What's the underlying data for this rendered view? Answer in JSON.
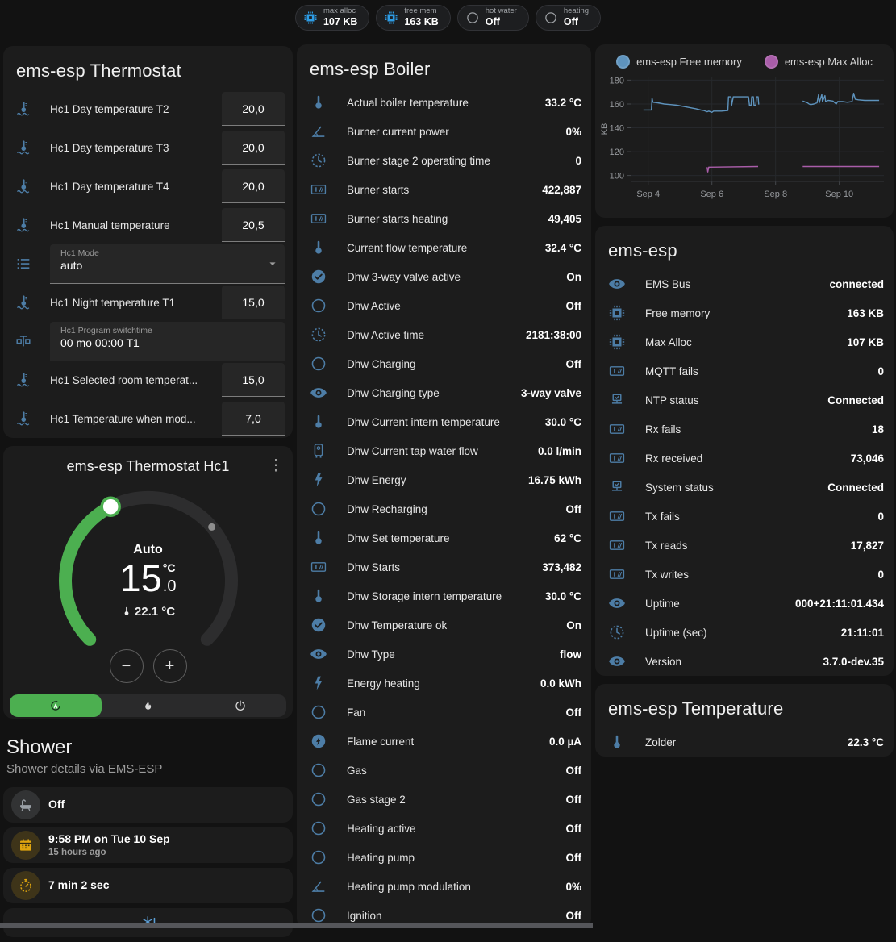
{
  "chips": [
    {
      "label": "max alloc",
      "value": "107 KB",
      "icon": "chip",
      "icon_color": "#2d9ce5"
    },
    {
      "label": "free mem",
      "value": "163 KB",
      "icon": "chip",
      "icon_color": "#2d9ce5"
    },
    {
      "label": "hot water",
      "value": "Off",
      "icon": "circle",
      "icon_color": "#9da0a4"
    },
    {
      "label": "heating",
      "value": "Off",
      "icon": "circle",
      "icon_color": "#9da0a4"
    }
  ],
  "thermostat_card": {
    "title": "ems-esp Thermostat",
    "rows": [
      {
        "type": "number",
        "icon": "thermo-water",
        "label": "Hc1 Day temperature T2",
        "value": "20,0"
      },
      {
        "type": "number",
        "icon": "thermo-water",
        "label": "Hc1 Day temperature T3",
        "value": "20,0"
      },
      {
        "type": "number",
        "icon": "thermo-water",
        "label": "Hc1 Day temperature T4",
        "value": "20,0"
      },
      {
        "type": "number",
        "icon": "thermo-water",
        "label": "Hc1 Manual temperature",
        "value": "20,5"
      },
      {
        "type": "select",
        "icon": "list",
        "label": "Hc1 Mode",
        "value": "auto"
      },
      {
        "type": "number",
        "icon": "thermo-water",
        "label": "Hc1 Night temperature T1",
        "value": "15,0"
      },
      {
        "type": "text",
        "icon": "valve",
        "label": "Hc1 Program switchtime",
        "value": "00 mo 00:00 T1"
      },
      {
        "type": "number",
        "icon": "thermo-water",
        "label": "Hc1 Selected room temperat...",
        "value": "15,0"
      },
      {
        "type": "number",
        "icon": "thermo-water",
        "label": "Hc1 Temperature when mod...",
        "value": "7,0"
      }
    ]
  },
  "hc1_card": {
    "title": "ems-esp Thermostat Hc1",
    "mode_label": "Auto",
    "target_whole": "15",
    "target_unit": "°C",
    "target_decimal": ".0",
    "current_temp": "22.1 °C",
    "accent_color": "#4caf50",
    "modes": [
      {
        "icon": "automode",
        "active": true
      },
      {
        "icon": "flame",
        "active": false
      },
      {
        "icon": "power",
        "active": false
      }
    ]
  },
  "shower": {
    "heading": "Shower",
    "subheading": "Shower details via EMS-ESP",
    "tiles": [
      {
        "icon": "bath",
        "icon_color": "#9aa0a6",
        "primary": "Off",
        "secondary": ""
      },
      {
        "icon": "calendar",
        "icon_color": "#dfa50f",
        "primary": "9:58 PM on Tue 10 Sep",
        "secondary": "15 hours ago"
      },
      {
        "icon": "timer",
        "icon_color": "#dfa50f",
        "primary": "7 min 2 sec",
        "secondary": ""
      },
      {
        "icon": "snowflake",
        "icon_color": "#5c9fd6",
        "primary": "",
        "secondary": ""
      }
    ]
  },
  "boiler_card": {
    "title": "ems-esp Boiler",
    "rows": [
      {
        "icon": "thermometer",
        "label": "Actual boiler temperature",
        "value": "33.2 °C"
      },
      {
        "icon": "angle",
        "label": "Burner current power",
        "value": "0%"
      },
      {
        "icon": "clockd",
        "label": "Burner stage 2 operating time",
        "value": "0"
      },
      {
        "icon": "counter",
        "label": "Burner starts",
        "value": "422,887"
      },
      {
        "icon": "counter",
        "label": "Burner starts heating",
        "value": "49,405"
      },
      {
        "icon": "thermometer",
        "label": "Current flow temperature",
        "value": "32.4 °C"
      },
      {
        "icon": "check-circle",
        "label": "Dhw 3-way valve active",
        "value": "On"
      },
      {
        "icon": "circle",
        "label": "Dhw Active",
        "value": "Off"
      },
      {
        "icon": "clockd",
        "label": "Dhw Active time",
        "value": "2181:38:00"
      },
      {
        "icon": "circle",
        "label": "Dhw Charging",
        "value": "Off"
      },
      {
        "icon": "eye",
        "label": "Dhw Charging type",
        "value": "3-way valve"
      },
      {
        "icon": "thermometer",
        "label": "Dhw Current intern temperature",
        "value": "30.0 °C"
      },
      {
        "icon": "boiler",
        "label": "Dhw Current tap water flow",
        "value": "0.0 l/min"
      },
      {
        "icon": "flash",
        "label": "Dhw Energy",
        "value": "16.75 kWh"
      },
      {
        "icon": "circle",
        "label": "Dhw Recharging",
        "value": "Off"
      },
      {
        "icon": "thermometer",
        "label": "Dhw Set temperature",
        "value": "62 °C"
      },
      {
        "icon": "counter",
        "label": "Dhw Starts",
        "value": "373,482"
      },
      {
        "icon": "thermometer",
        "label": "Dhw Storage intern temperature",
        "value": "30.0 °C"
      },
      {
        "icon": "check-circle",
        "label": "Dhw Temperature ok",
        "value": "On"
      },
      {
        "icon": "eye",
        "label": "Dhw Type",
        "value": "flow"
      },
      {
        "icon": "flash",
        "label": "Energy heating",
        "value": "0.0 kWh"
      },
      {
        "icon": "circle",
        "label": "Fan",
        "value": "Off"
      },
      {
        "icon": "flash-circle",
        "label": "Flame current",
        "value": "0.0 µA"
      },
      {
        "icon": "circle",
        "label": "Gas",
        "value": "Off"
      },
      {
        "icon": "circle",
        "label": "Gas stage 2",
        "value": "Off"
      },
      {
        "icon": "circle",
        "label": "Heating active",
        "value": "Off"
      },
      {
        "icon": "circle",
        "label": "Heating pump",
        "value": "Off"
      },
      {
        "icon": "angle",
        "label": "Heating pump modulation",
        "value": "0%"
      },
      {
        "icon": "circle",
        "label": "Ignition",
        "value": "Off"
      }
    ]
  },
  "system_card": {
    "title": "ems-esp",
    "rows": [
      {
        "icon": "eye",
        "label": "EMS Bus",
        "value": "connected"
      },
      {
        "icon": "chip",
        "label": "Free memory",
        "value": "163 KB"
      },
      {
        "icon": "chip",
        "label": "Max Alloc",
        "value": "107 KB"
      },
      {
        "icon": "counter",
        "label": "MQTT fails",
        "value": "0"
      },
      {
        "icon": "network",
        "label": "NTP status",
        "value": "Connected"
      },
      {
        "icon": "counter",
        "label": "Rx fails",
        "value": "18"
      },
      {
        "icon": "counter",
        "label": "Rx received",
        "value": "73,046"
      },
      {
        "icon": "network",
        "label": "System status",
        "value": "Connected"
      },
      {
        "icon": "counter",
        "label": "Tx fails",
        "value": "0"
      },
      {
        "icon": "counter",
        "label": "Tx reads",
        "value": "17,827"
      },
      {
        "icon": "counter",
        "label": "Tx writes",
        "value": "0"
      },
      {
        "icon": "eye",
        "label": "Uptime",
        "value": "000+21:11:01.434"
      },
      {
        "icon": "clockd",
        "label": "Uptime (sec)",
        "value": "21:11:01"
      },
      {
        "icon": "eye",
        "label": "Version",
        "value": "3.7.0-dev.35"
      }
    ]
  },
  "temperature_card": {
    "title": "ems-esp Temperature",
    "rows": [
      {
        "icon": "thermometer",
        "label": "Zolder",
        "value": "22.3 °C"
      }
    ]
  },
  "chart_data": {
    "type": "line",
    "ylabel": "KB",
    "ylim": [
      95,
      183
    ],
    "yticks": [
      100,
      120,
      140,
      160,
      180
    ],
    "xlim": [
      3.45,
      11.4
    ],
    "xticks": [
      {
        "x": 4,
        "label": "Sep 4"
      },
      {
        "x": 6,
        "label": "Sep 6"
      },
      {
        "x": 8,
        "label": "Sep 8"
      },
      {
        "x": 10,
        "label": "Sep 10"
      }
    ],
    "legend_position": "top",
    "grid": true,
    "series": [
      {
        "name": "ems-esp Free memory",
        "color": "#5e93bd",
        "segments": [
          [
            [
              3.85,
              155
            ],
            [
              4.1,
              155
            ],
            [
              4.12,
              165
            ],
            [
              4.15,
              161.5
            ],
            [
              4.3,
              161
            ],
            [
              4.5,
              160
            ],
            [
              4.7,
              159.5
            ],
            [
              4.9,
              159
            ],
            [
              5.1,
              158
            ],
            [
              5.3,
              157
            ],
            [
              5.5,
              156
            ],
            [
              5.65,
              155
            ],
            [
              5.75,
              154.5
            ],
            [
              5.85,
              153.5
            ],
            [
              5.9,
              154
            ],
            [
              6.0,
              153
            ],
            [
              6.05,
              154
            ],
            [
              6.3,
              154
            ],
            [
              6.5,
              154.5
            ],
            [
              6.52,
              166
            ],
            [
              6.6,
              166
            ],
            [
              6.62,
              159
            ],
            [
              6.67,
              166
            ],
            [
              7.15,
              166
            ],
            [
              7.18,
              159
            ],
            [
              7.23,
              159
            ],
            [
              7.25,
              166
            ],
            [
              7.3,
              166
            ],
            [
              7.32,
              159
            ],
            [
              7.38,
              159
            ],
            [
              7.4,
              166
            ],
            [
              7.45,
              166
            ],
            [
              7.47,
              159.5
            ]
          ],
          [
            [
              8.85,
              162.5
            ],
            [
              9.0,
              161
            ],
            [
              9.05,
              160
            ],
            [
              9.1,
              159.5
            ],
            [
              9.2,
              160
            ],
            [
              9.3,
              161
            ],
            [
              9.35,
              168
            ],
            [
              9.37,
              161
            ],
            [
              9.45,
              168
            ],
            [
              9.47,
              162
            ],
            [
              9.55,
              167
            ],
            [
              9.57,
              162
            ],
            [
              9.65,
              163
            ],
            [
              9.8,
              162.5
            ],
            [
              9.9,
              160
            ],
            [
              9.95,
              162
            ],
            [
              10.1,
              162
            ],
            [
              10.25,
              161.5
            ],
            [
              10.4,
              162
            ],
            [
              10.45,
              169
            ],
            [
              10.5,
              164
            ],
            [
              10.6,
              163.5
            ],
            [
              10.8,
              163
            ],
            [
              11.0,
              163
            ],
            [
              11.25,
              163
            ]
          ]
        ]
      },
      {
        "name": "ems-esp Max Alloc",
        "color": "#a95da9",
        "segments": [
          [
            [
              5.85,
              107
            ],
            [
              5.87,
              103
            ],
            [
              5.9,
              107
            ],
            [
              7.45,
              107.5
            ]
          ],
          [
            [
              8.85,
              107.5
            ],
            [
              11.25,
              107.5
            ]
          ]
        ]
      }
    ]
  }
}
